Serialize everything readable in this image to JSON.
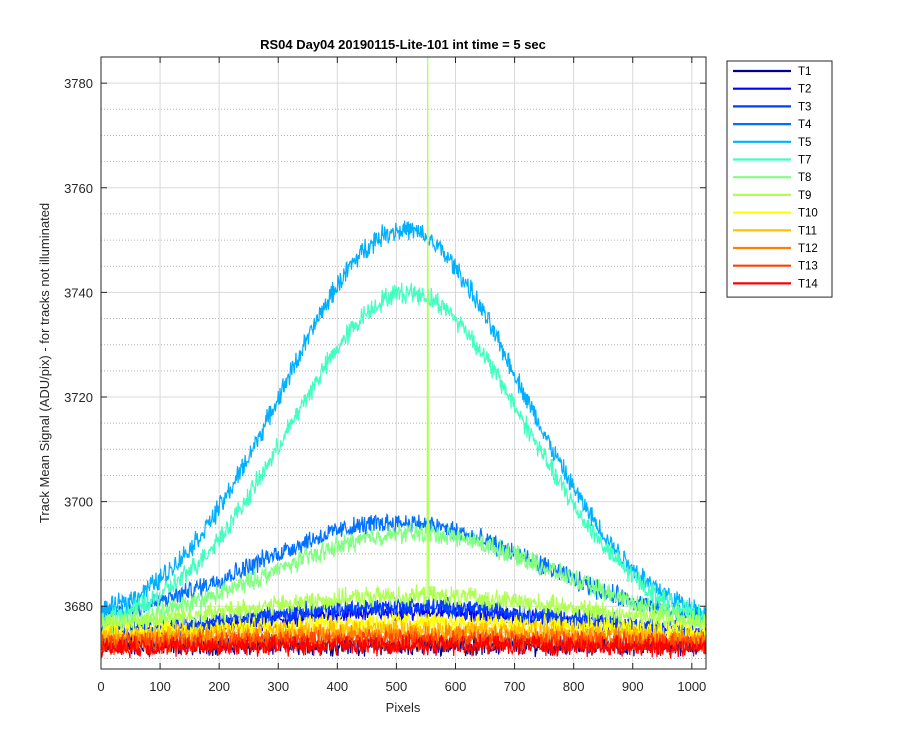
{
  "chart_data": {
    "type": "line",
    "title": "RS04 Day04 20190115-Lite-101 int time = 5 sec",
    "xlabel": "Pixels",
    "ylabel": "Track Mean Signal (ADU/pix) - for tracks not illuminated",
    "xlim": [
      0,
      1024
    ],
    "ylim": [
      3668,
      3785
    ],
    "xticks": [
      0,
      100,
      200,
      300,
      400,
      500,
      600,
      700,
      800,
      900,
      1000
    ],
    "yticks": [
      3680,
      3700,
      3720,
      3740,
      3760,
      3780
    ],
    "grid": true,
    "minor_grid": true,
    "legend_position": "outside-right-top",
    "series": [
      {
        "name": "T1",
        "color": "#00008f",
        "base": 3672.5,
        "peak": 0,
        "x0": 520,
        "sigma": 300,
        "noise": 1.5
      },
      {
        "name": "T2",
        "color": "#0000ff",
        "base": 3673,
        "peak": 6,
        "x0": 520,
        "sigma": 280,
        "noise": 1.5
      },
      {
        "name": "T3",
        "color": "#0040ff",
        "base": 3674,
        "peak": 6,
        "x0": 520,
        "sigma": 280,
        "noise": 1.5
      },
      {
        "name": "T4",
        "color": "#0070ff",
        "base": 3676,
        "peak": 20,
        "x0": 500,
        "sigma": 240,
        "noise": 1.5
      },
      {
        "name": "T5",
        "color": "#00b0ff",
        "base": 3676,
        "peak": 76,
        "x0": 510,
        "sigma": 200,
        "noise": 1.6
      },
      {
        "name": "T7",
        "color": "#40ffbf",
        "base": 3675,
        "peak": 65,
        "x0": 520,
        "sigma": 200,
        "noise": 1.6
      },
      {
        "name": "T8",
        "color": "#80ff80",
        "base": 3675,
        "peak": 19,
        "x0": 530,
        "sigma": 240,
        "noise": 1.5
      },
      {
        "name": "T9",
        "color": "#afff50",
        "base": 3675,
        "peak": 7,
        "x0": 530,
        "sigma": 300,
        "noise": 1.5,
        "spike_x": 553,
        "spike_y": 3785
      },
      {
        "name": "T10",
        "color": "#ffff00",
        "base": 3674,
        "peak": 3,
        "x0": 520,
        "sigma": 320,
        "noise": 1.5
      },
      {
        "name": "T11",
        "color": "#ffbf00",
        "base": 3673.5,
        "peak": 2,
        "x0": 520,
        "sigma": 320,
        "noise": 1.5
      },
      {
        "name": "T12",
        "color": "#ff8000",
        "base": 3673,
        "peak": 1.5,
        "x0": 520,
        "sigma": 320,
        "noise": 1.5
      },
      {
        "name": "T13",
        "color": "#ff4000",
        "base": 3672.5,
        "peak": 1,
        "x0": 520,
        "sigma": 320,
        "noise": 1.5
      },
      {
        "name": "T14",
        "color": "#ff0000",
        "base": 3672,
        "peak": 0.5,
        "x0": 520,
        "sigma": 320,
        "noise": 1.5
      }
    ]
  }
}
